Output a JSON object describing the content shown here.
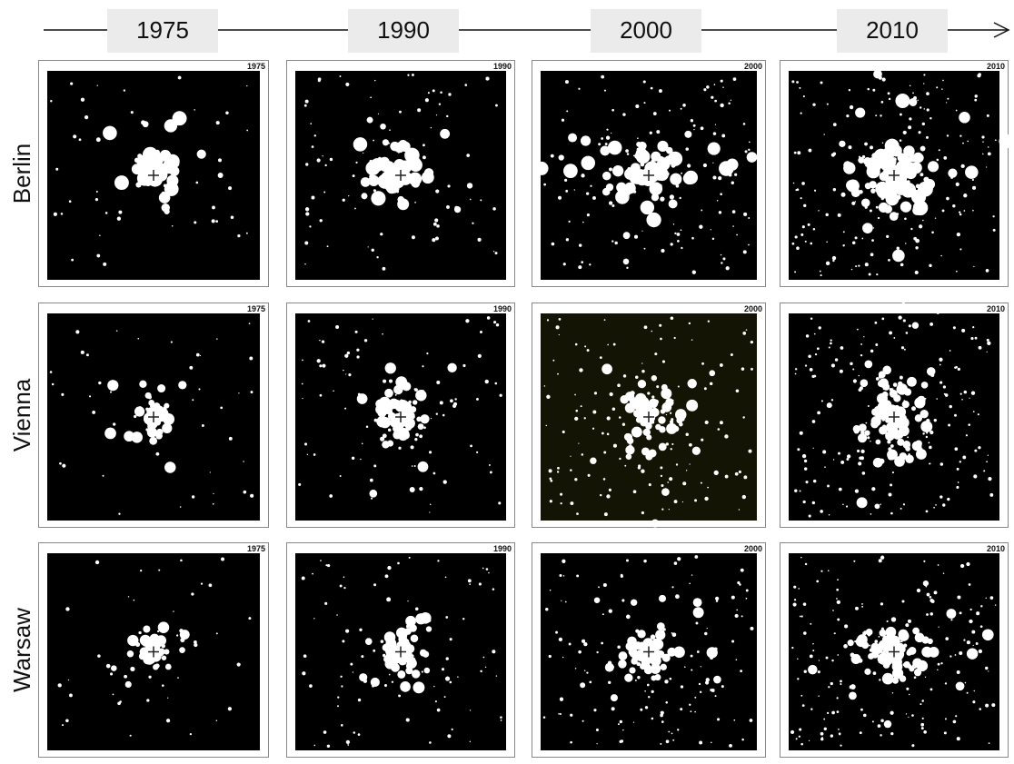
{
  "timeline": [
    "1975",
    "1990",
    "2000",
    "2010"
  ],
  "rows": [
    {
      "city": "Berlin",
      "panels": [
        "1975",
        "1990",
        "2000",
        "2010"
      ]
    },
    {
      "city": "Vienna",
      "panels": [
        "1975",
        "1990",
        "2000",
        "2010"
      ]
    },
    {
      "city": "Warsaw",
      "panels": [
        "1975",
        "1990",
        "2000",
        "2010"
      ]
    }
  ]
}
